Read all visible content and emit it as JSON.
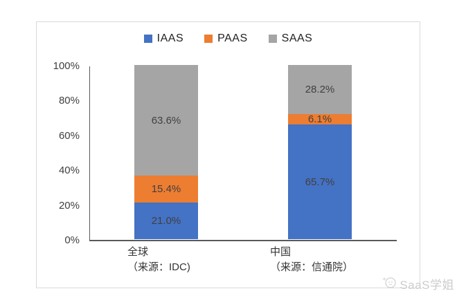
{
  "watermark": {
    "text": "SaaS学姐"
  },
  "chart_data": {
    "type": "bar",
    "stacked": true,
    "title": "",
    "xlabel": "",
    "ylabel": "",
    "legend_position": "top",
    "grid": false,
    "y_axis": {
      "min": 0,
      "max": 100,
      "ticks": [
        "100%",
        "80%",
        "60%",
        "40%",
        "20%",
        "0%"
      ]
    },
    "categories": [
      {
        "line1": "全球",
        "line2": "（来源：IDC)"
      },
      {
        "line1": "中国",
        "line2": "（来源：信通院）"
      }
    ],
    "series": [
      {
        "name": "IAAS",
        "color": "#4472C4",
        "values": [
          21.0,
          65.7
        ],
        "labels": [
          "21.0%",
          "65.7%"
        ]
      },
      {
        "name": "PAAS",
        "color": "#ED7D31",
        "values": [
          15.4,
          6.1
        ],
        "labels": [
          "15.4%",
          "6.1%"
        ]
      },
      {
        "name": "SAAS",
        "color": "#A5A5A5",
        "values": [
          63.6,
          28.2
        ],
        "labels": [
          "63.6%",
          "28.2%"
        ]
      }
    ],
    "label_color": "#404040"
  }
}
